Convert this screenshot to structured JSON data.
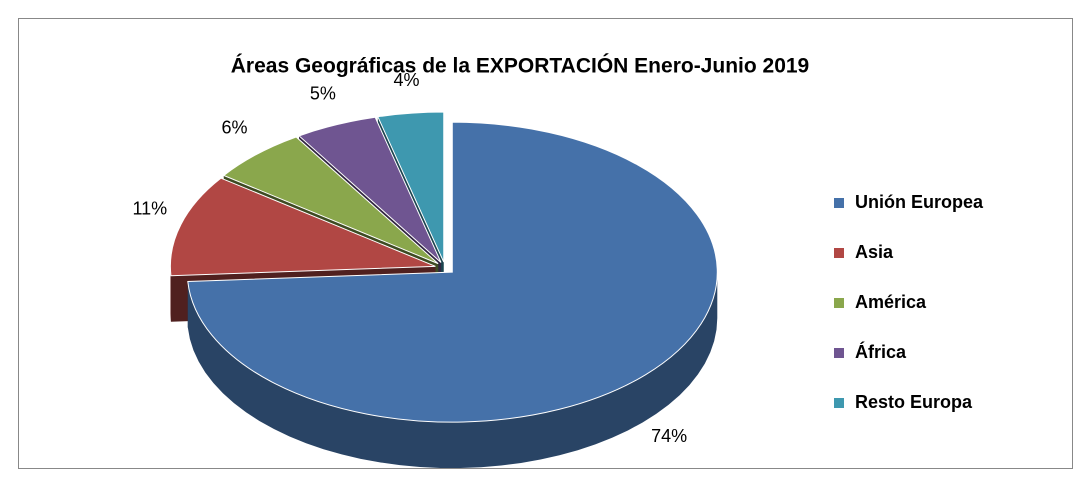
{
  "chart_data": {
    "type": "pie",
    "title": "Áreas Geográficas de la EXPORTACIÓN Enero-Junio 2019",
    "categories": [
      "Unión Europea",
      "Asia",
      "América",
      "África",
      "Resto Europa"
    ],
    "values": [
      74,
      11,
      6,
      5,
      4
    ],
    "value_labels": [
      "74%",
      "11%",
      "6%",
      "5%",
      "4%"
    ],
    "colors": [
      "#4571a9",
      "#b14744",
      "#8aa74c",
      "#6f5591",
      "#3e98af"
    ],
    "legend": "right"
  }
}
